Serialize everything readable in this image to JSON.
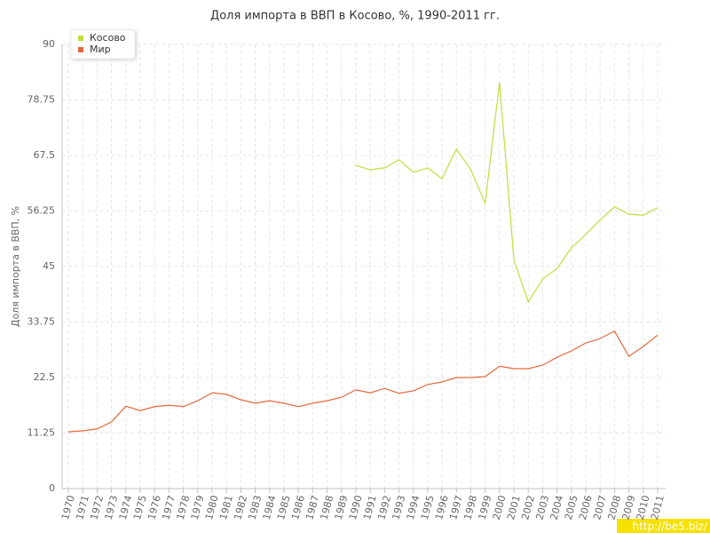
{
  "chart_data": {
    "type": "line",
    "title": "Доля импорта в ВВП в Косово, %, 1990-2011 гг.",
    "y_label": "Доля импорта в ВВП, %",
    "watermark": "http://be5.biz/",
    "categories": [
      "1970",
      "1971",
      "1972",
      "1973",
      "1974",
      "1975",
      "1976",
      "1977",
      "1978",
      "1979",
      "1980",
      "1981",
      "1982",
      "1983",
      "1984",
      "1985",
      "1986",
      "1987",
      "1988",
      "1989",
      "1990",
      "1991",
      "1992",
      "1993",
      "1994",
      "1995",
      "1996",
      "1997",
      "1998",
      "1999",
      "2000",
      "2001",
      "2002",
      "2003",
      "2004",
      "2005",
      "2006",
      "2007",
      "2008",
      "2009",
      "2010",
      "2011"
    ],
    "series": [
      {
        "name": "Косово",
        "color": "#bfdf3f",
        "values": [
          null,
          null,
          null,
          null,
          null,
          null,
          null,
          null,
          null,
          null,
          null,
          null,
          null,
          null,
          null,
          null,
          null,
          null,
          null,
          null,
          65.5,
          64.6,
          65.0,
          66.6,
          64.1,
          65.0,
          62.8,
          68.8,
          64.6,
          57.8,
          82.4,
          46.3,
          37.8,
          42.5,
          44.6,
          48.8,
          51.5,
          54.4,
          57.1,
          55.6,
          55.4,
          56.9
        ]
      },
      {
        "name": "Мир",
        "color": "#e3693f",
        "values": [
          11.5,
          11.7,
          12.1,
          13.5,
          16.7,
          15.8,
          16.6,
          16.9,
          16.6,
          17.8,
          19.4,
          19.1,
          18.0,
          17.3,
          17.8,
          17.3,
          16.6,
          17.3,
          17.8,
          18.5,
          20.0,
          19.4,
          20.3,
          19.3,
          19.8,
          21.1,
          21.6,
          22.5,
          22.5,
          22.7,
          24.8,
          24.3,
          24.3,
          25.0,
          26.6,
          27.9,
          29.5,
          30.4,
          31.9,
          26.8,
          28.8,
          31.1
        ]
      }
    ],
    "ylim": [
      0,
      90
    ],
    "yticks": [
      0,
      11.25,
      22.5,
      33.75,
      45,
      56.25,
      67.5,
      78.75,
      90
    ],
    "grid": true,
    "legend": "top-left"
  }
}
